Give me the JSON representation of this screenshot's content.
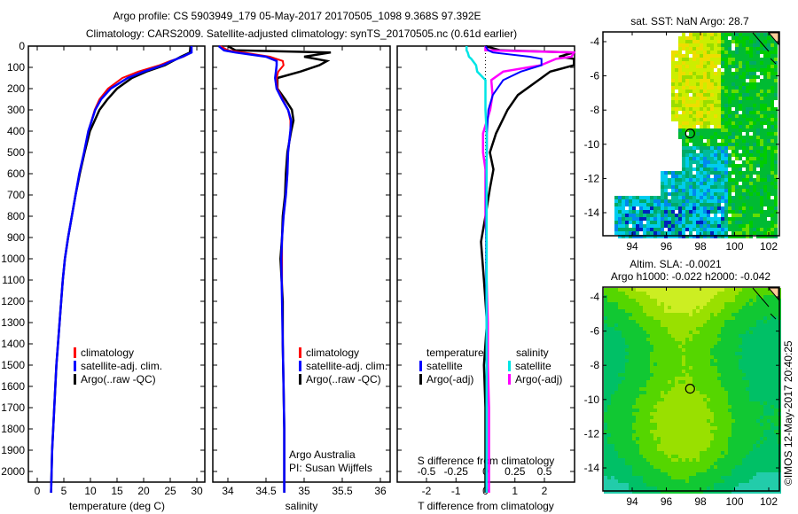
{
  "title_line1": "Argo profile: CS 5903949_179 05-May-2017 20170505_1098 9.368S 97.392E",
  "title_line2": "Climatology: CARS2009. Satellite-adjusted climatology: synTS_20170505.nc (0.61d earlier)",
  "credit": "©IMOS 12-May-2017 20:40:25",
  "colors": {
    "climatology": "#ff0000",
    "satellite": "#0000ff",
    "argo": "#000000",
    "sal_satellite": "#00e5e5",
    "sal_argo": "#ff00ff"
  },
  "chart_data": [
    {
      "type": "line",
      "name": "temperature",
      "xlabel": "temperature (deg C)",
      "ylabel": "",
      "xlim": [
        -0.3,
        31
      ],
      "ylim": [
        2100,
        0
      ],
      "xticks": [
        "0",
        "5",
        "10",
        "15",
        "20",
        "25",
        "30"
      ],
      "xtick_values": [
        0,
        5,
        10,
        15,
        20,
        25,
        30
      ],
      "yticks": [
        "0",
        "100",
        "200",
        "300",
        "400",
        "500",
        "600",
        "700",
        "800",
        "900",
        "1000",
        "1100",
        "1200",
        "1300",
        "1400",
        "1500",
        "1600",
        "1700",
        "1800",
        "1900",
        "2000"
      ],
      "legend": [
        "climatology",
        "satellite-adj. clim.",
        "Argo(..raw -QC)"
      ],
      "depth": [
        0,
        30,
        50,
        70,
        90,
        120,
        150,
        200,
        250,
        300,
        400,
        500,
        600,
        700,
        800,
        900,
        1000,
        1100,
        1200,
        1300,
        1400,
        1500,
        1600,
        1700,
        1800,
        1900,
        2000,
        2100
      ],
      "series": [
        {
          "name": "climatology",
          "values": [
            29,
            29,
            27.5,
            25,
            23,
            19,
            16,
            13.3,
            11.7,
            10.8,
            9.6,
            8.8,
            7.9,
            7.2,
            6.5,
            5.8,
            5.2,
            4.8,
            4.5,
            4.2,
            3.9,
            3.6,
            3.4,
            3.2,
            3.0,
            2.8,
            2.7,
            2.6
          ]
        },
        {
          "name": "satellite-adj. clim.",
          "values": [
            29,
            29,
            27.3,
            25.3,
            23.6,
            20,
            17,
            13.8,
            12,
            10.9,
            9.6,
            8.8,
            7.9,
            7.2,
            6.5,
            5.8,
            5.2,
            4.8,
            4.5,
            4.2,
            3.9,
            3.6,
            3.4,
            3.2,
            3.0,
            2.8,
            2.7,
            2.6
          ]
        },
        {
          "name": "Argo(..raw -QC)",
          "values": [
            28.8,
            28.7,
            27,
            25.5,
            24,
            20.5,
            17.8,
            15,
            13.2,
            11.7,
            9.9,
            8.9,
            8.0,
            7.2,
            6.5,
            5.8,
            5.2,
            4.8,
            4.5,
            4.2,
            3.9,
            3.6,
            3.4,
            3.2,
            3.0,
            2.8,
            2.7,
            2.6
          ]
        }
      ]
    },
    {
      "type": "line",
      "name": "salinity",
      "xlabel": "salinity",
      "xlim": [
        33.8,
        36.1
      ],
      "ylim": [
        2100,
        0
      ],
      "xticks": [
        "34",
        "34.5",
        "35",
        "35.5",
        "36"
      ],
      "xtick_values": [
        34,
        34.5,
        35,
        35.5,
        36
      ],
      "legend": [
        "climatology",
        "satellite-adj. clim.",
        "Argo(..raw -QC)"
      ],
      "annotation": [
        "Argo Australia",
        "PI: Susan Wijffels"
      ],
      "depth": [
        0,
        20,
        30,
        50,
        70,
        90,
        120,
        150,
        200,
        250,
        300,
        350,
        400,
        500,
        600,
        700,
        800,
        900,
        1000,
        1200,
        1400,
        1600,
        1800,
        2000,
        2100
      ],
      "series": [
        {
          "name": "climatology",
          "values": [
            33.9,
            34.0,
            34.2,
            34.55,
            34.72,
            34.73,
            34.66,
            34.64,
            34.65,
            34.72,
            34.79,
            34.82,
            34.82,
            34.79,
            34.78,
            34.76,
            34.73,
            34.71,
            34.71,
            34.71,
            34.72,
            34.73,
            34.74,
            34.74,
            34.74
          ]
        },
        {
          "name": "satellite-adj. clim.",
          "values": [
            33.88,
            33.95,
            34.1,
            34.5,
            34.64,
            34.64,
            34.63,
            34.62,
            34.64,
            34.71,
            34.79,
            34.83,
            34.82,
            34.79,
            34.78,
            34.76,
            34.73,
            34.71,
            34.7,
            34.71,
            34.72,
            34.73,
            34.74,
            34.74,
            34.74
          ]
        },
        {
          "name": "Argo(..raw -QC)",
          "values": [
            34.0,
            34.1,
            35.35,
            35.0,
            35.3,
            35.2,
            34.95,
            34.65,
            34.65,
            34.75,
            34.84,
            34.86,
            34.83,
            34.78,
            34.76,
            34.75,
            34.72,
            34.71,
            34.69,
            34.72,
            34.72,
            34.73,
            34.74,
            34.74,
            34.74
          ]
        }
      ]
    },
    {
      "type": "line",
      "name": "difference",
      "xlabel": "T difference from climatology",
      "x2label": "S difference from climatology",
      "xlim": [
        -3,
        3
      ],
      "x2lim": [
        -0.75,
        0.75
      ],
      "ylim": [
        2100,
        0
      ],
      "xticks": [
        "-2",
        "-1",
        "0",
        "1",
        "2"
      ],
      "xtick_values": [
        -2,
        -1,
        0,
        1,
        2
      ],
      "x2ticks": [
        "-0.5",
        "-0.25",
        "0",
        "0.25",
        "0.5"
      ],
      "x2tick_values": [
        -0.5,
        -0.25,
        0,
        0.25,
        0.5
      ],
      "legend_temperature": {
        "title": "temperature",
        "items": [
          "satellite",
          "Argo(-adj)"
        ]
      },
      "legend_salinity": {
        "title": "salinity",
        "items": [
          "satellite",
          "Argo(-adj)"
        ]
      },
      "depth": [
        0,
        20,
        30,
        50,
        60,
        90,
        120,
        160,
        230,
        300,
        410,
        500,
        580,
        670,
        800,
        920,
        1100,
        1300,
        1500,
        1700,
        1900,
        2100
      ],
      "series": [
        {
          "name": "T satellite",
          "axis": "T",
          "values": [
            0,
            0.1,
            0.25,
            1.5,
            1.9,
            1.9,
            1.2,
            0.6,
            0.25,
            0.1,
            0.05,
            0.05,
            0.03,
            0.02,
            0.02,
            0.02,
            0.02,
            0.03,
            0.03,
            0.04,
            0.04,
            0.04
          ]
        },
        {
          "name": "T Argo(-adj)",
          "axis": "T",
          "values": [
            0,
            0.5,
            3,
            2.5,
            3,
            3,
            2.2,
            1.8,
            1.1,
            0.75,
            0.36,
            0.15,
            0.27,
            0.15,
            0,
            -0.15,
            -0.05,
            0.05,
            -0.05,
            0.0,
            0.0,
            0.0
          ]
        },
        {
          "name": "S satellite",
          "axis": "S",
          "values": [
            -0.16,
            -0.16,
            -0.15,
            -0.14,
            -0.12,
            -0.08,
            -0.07,
            0.0,
            0.0,
            0.0,
            0.01,
            0.01,
            0.01,
            0.01,
            0.01,
            0.01,
            0.01,
            0.01,
            0.01,
            0.01,
            0.01,
            0.01
          ]
        },
        {
          "name": "S Argo(-adj)",
          "axis": "S",
          "values": [
            0,
            0,
            0.75,
            0.73,
            0.6,
            0.47,
            0.15,
            0.05,
            0.06,
            0.04,
            -0.02,
            -0.02,
            0.0,
            0.0,
            0.0,
            0.01,
            0.01,
            0.02,
            0.02,
            0.03,
            0.03,
            0.03
          ]
        }
      ]
    },
    {
      "type": "heatmap",
      "name": "sst_map",
      "title": "sat. SST: NaN Argo: 28.7",
      "xlim": [
        92.3,
        102.6
      ],
      "ylim": [
        -15.4,
        -3.4
      ],
      "xticks": [
        "94",
        "96",
        "98",
        "100",
        "102"
      ],
      "xtick_values": [
        94,
        96,
        98,
        100,
        102
      ],
      "yticks": [
        "-4",
        "-6",
        "-8",
        "-10",
        "-12",
        "-14"
      ],
      "ytick_values": [
        -4,
        -6,
        -8,
        -10,
        -12,
        -14
      ],
      "argo_position": {
        "lon": 97.392,
        "lat": -9.368
      }
    },
    {
      "type": "heatmap",
      "name": "sla_map",
      "title": "Altim. SLA: -0.0021",
      "subtitle": "Argo h1000: -0.022 h2000: -0.042",
      "xlim": [
        92.3,
        102.6
      ],
      "ylim": [
        -15.4,
        -3.4
      ],
      "xticks": [
        "94",
        "96",
        "98",
        "100",
        "102"
      ],
      "xtick_values": [
        94,
        96,
        98,
        100,
        102
      ],
      "yticks": [
        "-4",
        "-6",
        "-8",
        "-10",
        "-12",
        "-14"
      ],
      "ytick_values": [
        -4,
        -6,
        -8,
        -10,
        -12,
        -14
      ],
      "argo_position": {
        "lon": 97.392,
        "lat": -9.368
      }
    }
  ]
}
